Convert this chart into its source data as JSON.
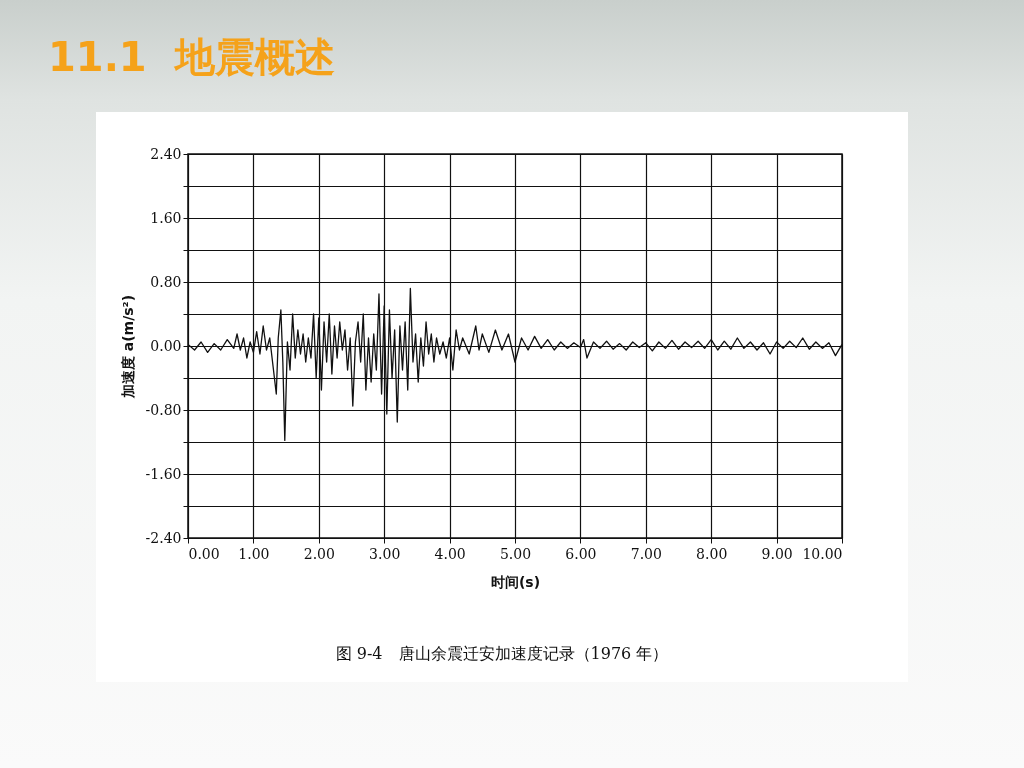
{
  "chart_data": {
    "type": "line",
    "title": "11.1  地震概述",
    "xlabel": "时间(s)",
    "ylabel": "加速度 a(m/s²)",
    "annotations": [
      "图 9-4　唐山余震迁安加速度记录（1976 年）"
    ],
    "xlim": [
      0,
      10
    ],
    "xticks": [
      {
        "value": 0,
        "label": "0.00"
      },
      {
        "value": 1,
        "label": "1.00"
      },
      {
        "value": 2,
        "label": "2.00"
      },
      {
        "value": 3,
        "label": "3.00"
      },
      {
        "value": 4,
        "label": "4.00"
      },
      {
        "value": 5,
        "label": "5.00"
      },
      {
        "value": 6,
        "label": "6.00"
      },
      {
        "value": 7,
        "label": "7.00"
      },
      {
        "value": 8,
        "label": "8.00"
      },
      {
        "value": 9,
        "label": "9.00"
      },
      {
        "value": 10,
        "label": "10.00"
      }
    ],
    "ylim": [
      -2.4,
      2.4
    ],
    "yticks": [
      {
        "value": -2.4,
        "label": "-2.40"
      },
      {
        "value": -2.0,
        "label": null
      },
      {
        "value": -1.6,
        "label": "-1.60"
      },
      {
        "value": -1.2,
        "label": null
      },
      {
        "value": -0.8,
        "label": "-0.80"
      },
      {
        "value": -0.4,
        "label": null
      },
      {
        "value": 0,
        "label": "0.00"
      },
      {
        "value": 0.4,
        "label": null
      },
      {
        "value": 0.8,
        "label": "0.80"
      },
      {
        "value": 1.2,
        "label": null
      },
      {
        "value": 1.6,
        "label": "1.60"
      },
      {
        "value": 2.0,
        "label": null
      },
      {
        "value": 2.4,
        "label": "2.40"
      }
    ],
    "grid": true,
    "marker": "none",
    "line_style": "solid",
    "series": [
      {
        "color": "#111111",
        "x": [
          0,
          0.1,
          0.2,
          0.3,
          0.4,
          0.5,
          0.6,
          0.7,
          0.75,
          0.8,
          0.85,
          0.9,
          0.95,
          1.0,
          1.05,
          1.1,
          1.15,
          1.2,
          1.25,
          1.3,
          1.35,
          1.38,
          1.42,
          1.45,
          1.48,
          1.52,
          1.56,
          1.6,
          1.64,
          1.68,
          1.72,
          1.76,
          1.8,
          1.84,
          1.88,
          1.92,
          1.96,
          2.0,
          2.04,
          2.08,
          2.12,
          2.16,
          2.2,
          2.24,
          2.28,
          2.32,
          2.36,
          2.4,
          2.44,
          2.48,
          2.52,
          2.56,
          2.6,
          2.64,
          2.68,
          2.72,
          2.76,
          2.8,
          2.84,
          2.88,
          2.92,
          2.96,
          3.0,
          3.04,
          3.08,
          3.12,
          3.16,
          3.2,
          3.24,
          3.28,
          3.32,
          3.36,
          3.4,
          3.44,
          3.48,
          3.52,
          3.56,
          3.6,
          3.64,
          3.68,
          3.72,
          3.76,
          3.8,
          3.85,
          3.9,
          3.95,
          4.0,
          4.05,
          4.1,
          4.15,
          4.2,
          4.3,
          4.4,
          4.45,
          4.5,
          4.6,
          4.7,
          4.8,
          4.9,
          5.0,
          5.1,
          5.2,
          5.3,
          5.4,
          5.5,
          5.6,
          5.7,
          5.8,
          5.9,
          6.0,
          6.05,
          6.1,
          6.2,
          6.3,
          6.4,
          6.5,
          6.6,
          6.7,
          6.8,
          6.9,
          7.0,
          7.1,
          7.2,
          7.3,
          7.4,
          7.5,
          7.6,
          7.7,
          7.8,
          7.9,
          8.0,
          8.1,
          8.2,
          8.3,
          8.4,
          8.5,
          8.6,
          8.7,
          8.8,
          8.9,
          9.0,
          9.1,
          9.2,
          9.3,
          9.4,
          9.5,
          9.6,
          9.7,
          9.8,
          9.9,
          10.0
        ],
        "values": [
          0.02,
          -0.05,
          0.05,
          -0.08,
          0.03,
          -0.05,
          0.08,
          -0.03,
          0.15,
          -0.05,
          0.1,
          -0.15,
          0.05,
          -0.08,
          0.18,
          -0.1,
          0.25,
          -0.05,
          0.1,
          -0.25,
          -0.6,
          0.1,
          0.45,
          -0.2,
          -1.18,
          0.05,
          -0.3,
          0.4,
          -0.15,
          0.2,
          -0.1,
          0.15,
          -0.2,
          0.1,
          -0.15,
          0.4,
          -0.4,
          0.35,
          -0.55,
          0.3,
          -0.2,
          0.4,
          -0.35,
          0.25,
          -0.15,
          0.3,
          -0.05,
          0.2,
          -0.3,
          0.1,
          -0.75,
          0.05,
          0.3,
          -0.2,
          0.4,
          -0.55,
          0.1,
          -0.45,
          0.15,
          -0.3,
          0.65,
          -0.6,
          0.5,
          -0.85,
          0.45,
          -0.4,
          0.2,
          -0.95,
          0.25,
          -0.3,
          0.3,
          -0.55,
          0.72,
          -0.2,
          0.15,
          -0.45,
          0.1,
          -0.25,
          0.3,
          -0.1,
          0.15,
          -0.2,
          0.1,
          -0.1,
          0.05,
          -0.15,
          0.1,
          -0.3,
          0.2,
          -0.05,
          0.1,
          -0.1,
          0.25,
          -0.05,
          0.15,
          -0.08,
          0.2,
          -0.05,
          0.15,
          -0.2,
          0.1,
          -0.05,
          0.12,
          -0.03,
          0.08,
          -0.05,
          0.05,
          -0.03,
          0.04,
          -0.02,
          0.08,
          -0.15,
          0.05,
          -0.03,
          0.06,
          -0.04,
          0.03,
          -0.05,
          0.05,
          -0.02,
          0.04,
          -0.06,
          0.05,
          -0.03,
          0.07,
          -0.04,
          0.05,
          -0.02,
          0.06,
          -0.03,
          0.08,
          -0.05,
          0.06,
          -0.04,
          0.1,
          -0.03,
          0.05,
          -0.05,
          0.04,
          -0.1,
          0.05,
          -0.03,
          0.06,
          -0.02,
          0.1,
          -0.04,
          0.05,
          -0.03,
          0.04,
          -0.12,
          0.02
        ]
      }
    ]
  }
}
